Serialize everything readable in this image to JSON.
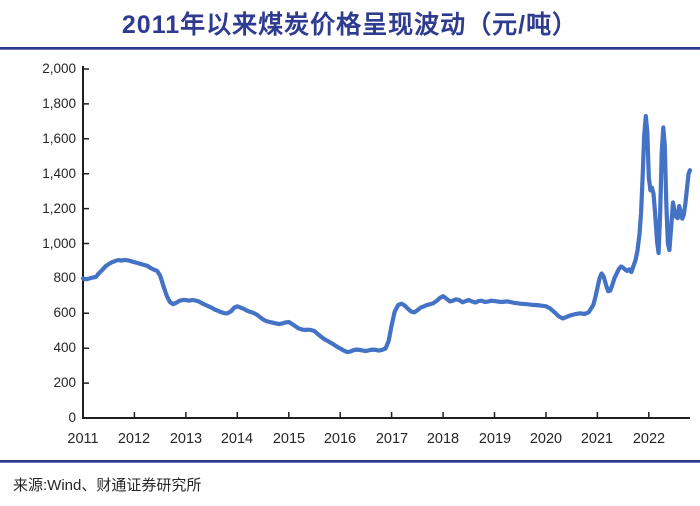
{
  "title": "2011年以来煤炭价格呈现波动（元/吨）",
  "source": "来源:Wind、财通证券研究所",
  "colors": {
    "accent": "#2e3b8e",
    "line": "#4472c4",
    "axis": "#1f1f1f",
    "label": "#262626"
  },
  "chart_data": {
    "type": "line",
    "title": "2011年以来煤炭价格呈现波动（元/吨）",
    "xlabel": "",
    "ylabel": "",
    "unit": "元/吨",
    "grid": false,
    "legend": "none",
    "xlim": [
      2011,
      2022.8
    ],
    "ylim": [
      0,
      2000
    ],
    "x_ticks": [
      2011,
      2012,
      2013,
      2014,
      2015,
      2016,
      2017,
      2018,
      2019,
      2020,
      2021,
      2022
    ],
    "y_ticks": [
      0,
      200,
      400,
      600,
      800,
      1000,
      1200,
      1400,
      1600,
      1800,
      2000
    ],
    "y_tick_labels": [
      "0",
      "200",
      "400",
      "600",
      "800",
      "1,000",
      "1,200",
      "1,400",
      "1,600",
      "1,800",
      "2,000"
    ],
    "series": [
      {
        "points": [
          [
            2011.0,
            800
          ],
          [
            2011.06,
            795
          ],
          [
            2011.13,
            800
          ],
          [
            2011.19,
            805
          ],
          [
            2011.25,
            808
          ],
          [
            2011.31,
            830
          ],
          [
            2011.38,
            850
          ],
          [
            2011.44,
            870
          ],
          [
            2011.5,
            882
          ],
          [
            2011.56,
            892
          ],
          [
            2011.63,
            900
          ],
          [
            2011.69,
            905
          ],
          [
            2011.75,
            902
          ],
          [
            2011.81,
            906
          ],
          [
            2011.88,
            903
          ],
          [
            2011.94,
            898
          ],
          [
            2012.0,
            893
          ],
          [
            2012.06,
            888
          ],
          [
            2012.13,
            882
          ],
          [
            2012.19,
            877
          ],
          [
            2012.25,
            872
          ],
          [
            2012.31,
            860
          ],
          [
            2012.38,
            850
          ],
          [
            2012.44,
            843
          ],
          [
            2012.5,
            815
          ],
          [
            2012.56,
            760
          ],
          [
            2012.63,
            700
          ],
          [
            2012.69,
            665
          ],
          [
            2012.75,
            652
          ],
          [
            2012.81,
            660
          ],
          [
            2012.88,
            672
          ],
          [
            2012.94,
            676
          ],
          [
            2013.0,
            676
          ],
          [
            2013.06,
            672
          ],
          [
            2013.13,
            676
          ],
          [
            2013.19,
            673
          ],
          [
            2013.25,
            668
          ],
          [
            2013.31,
            658
          ],
          [
            2013.38,
            648
          ],
          [
            2013.44,
            640
          ],
          [
            2013.5,
            632
          ],
          [
            2013.56,
            622
          ],
          [
            2013.63,
            614
          ],
          [
            2013.69,
            606
          ],
          [
            2013.75,
            600
          ],
          [
            2013.81,
            600
          ],
          [
            2013.88,
            612
          ],
          [
            2013.94,
            632
          ],
          [
            2014.0,
            640
          ],
          [
            2014.06,
            633
          ],
          [
            2014.13,
            625
          ],
          [
            2014.19,
            615
          ],
          [
            2014.25,
            608
          ],
          [
            2014.31,
            603
          ],
          [
            2014.38,
            592
          ],
          [
            2014.44,
            578
          ],
          [
            2014.5,
            565
          ],
          [
            2014.56,
            556
          ],
          [
            2014.63,
            550
          ],
          [
            2014.69,
            546
          ],
          [
            2014.75,
            542
          ],
          [
            2014.81,
            538
          ],
          [
            2014.88,
            542
          ],
          [
            2014.94,
            548
          ],
          [
            2015.0,
            550
          ],
          [
            2015.06,
            540
          ],
          [
            2015.13,
            525
          ],
          [
            2015.19,
            514
          ],
          [
            2015.25,
            508
          ],
          [
            2015.31,
            505
          ],
          [
            2015.38,
            506
          ],
          [
            2015.44,
            504
          ],
          [
            2015.5,
            498
          ],
          [
            2015.56,
            482
          ],
          [
            2015.63,
            465
          ],
          [
            2015.69,
            452
          ],
          [
            2015.75,
            443
          ],
          [
            2015.81,
            432
          ],
          [
            2015.88,
            420
          ],
          [
            2015.94,
            408
          ],
          [
            2016.0,
            398
          ],
          [
            2016.06,
            388
          ],
          [
            2016.13,
            378
          ],
          [
            2016.19,
            380
          ],
          [
            2016.25,
            388
          ],
          [
            2016.31,
            392
          ],
          [
            2016.38,
            390
          ],
          [
            2016.44,
            386
          ],
          [
            2016.5,
            384
          ],
          [
            2016.56,
            388
          ],
          [
            2016.63,
            392
          ],
          [
            2016.69,
            390
          ],
          [
            2016.75,
            386
          ],
          [
            2016.81,
            390
          ],
          [
            2016.88,
            398
          ],
          [
            2016.94,
            440
          ],
          [
            2017.0,
            530
          ],
          [
            2017.06,
            610
          ],
          [
            2017.13,
            648
          ],
          [
            2017.19,
            655
          ],
          [
            2017.25,
            645
          ],
          [
            2017.31,
            628
          ],
          [
            2017.38,
            610
          ],
          [
            2017.44,
            605
          ],
          [
            2017.5,
            618
          ],
          [
            2017.56,
            632
          ],
          [
            2017.63,
            640
          ],
          [
            2017.69,
            648
          ],
          [
            2017.75,
            652
          ],
          [
            2017.81,
            658
          ],
          [
            2017.88,
            672
          ],
          [
            2017.94,
            688
          ],
          [
            2018.0,
            698
          ],
          [
            2018.06,
            685
          ],
          [
            2018.13,
            668
          ],
          [
            2018.19,
            672
          ],
          [
            2018.25,
            680
          ],
          [
            2018.31,
            676
          ],
          [
            2018.38,
            663
          ],
          [
            2018.44,
            670
          ],
          [
            2018.5,
            676
          ],
          [
            2018.56,
            668
          ],
          [
            2018.63,
            662
          ],
          [
            2018.69,
            670
          ],
          [
            2018.75,
            672
          ],
          [
            2018.81,
            665
          ],
          [
            2018.88,
            668
          ],
          [
            2018.94,
            672
          ],
          [
            2019.0,
            670
          ],
          [
            2019.13,
            665
          ],
          [
            2019.25,
            668
          ],
          [
            2019.38,
            660
          ],
          [
            2019.5,
            655
          ],
          [
            2019.63,
            652
          ],
          [
            2019.75,
            648
          ],
          [
            2019.88,
            645
          ],
          [
            2020.0,
            640
          ],
          [
            2020.08,
            628
          ],
          [
            2020.17,
            605
          ],
          [
            2020.25,
            582
          ],
          [
            2020.33,
            570
          ],
          [
            2020.42,
            582
          ],
          [
            2020.5,
            590
          ],
          [
            2020.58,
            596
          ],
          [
            2020.67,
            600
          ],
          [
            2020.75,
            596
          ],
          [
            2020.83,
            606
          ],
          [
            2020.92,
            648
          ],
          [
            2020.96,
            690
          ],
          [
            2021.0,
            745
          ],
          [
            2021.04,
            800
          ],
          [
            2021.08,
            828
          ],
          [
            2021.12,
            812
          ],
          [
            2021.17,
            760
          ],
          [
            2021.21,
            726
          ],
          [
            2021.25,
            730
          ],
          [
            2021.29,
            762
          ],
          [
            2021.33,
            800
          ],
          [
            2021.38,
            832
          ],
          [
            2021.42,
            855
          ],
          [
            2021.46,
            868
          ],
          [
            2021.5,
            862
          ],
          [
            2021.54,
            850
          ],
          [
            2021.58,
            843
          ],
          [
            2021.62,
            852
          ],
          [
            2021.66,
            836
          ],
          [
            2021.7,
            870
          ],
          [
            2021.74,
            905
          ],
          [
            2021.78,
            960
          ],
          [
            2021.82,
            1060
          ],
          [
            2021.85,
            1180
          ],
          [
            2021.88,
            1390
          ],
          [
            2021.91,
            1620
          ],
          [
            2021.94,
            1730
          ],
          [
            2021.97,
            1640
          ],
          [
            2022.0,
            1380
          ],
          [
            2022.03,
            1305
          ],
          [
            2022.06,
            1320
          ],
          [
            2022.09,
            1285
          ],
          [
            2022.12,
            1180
          ],
          [
            2022.16,
            1010
          ],
          [
            2022.19,
            945
          ],
          [
            2022.22,
            1180
          ],
          [
            2022.25,
            1520
          ],
          [
            2022.28,
            1665
          ],
          [
            2022.31,
            1560
          ],
          [
            2022.34,
            1230
          ],
          [
            2022.37,
            1000
          ],
          [
            2022.4,
            962
          ],
          [
            2022.44,
            1120
          ],
          [
            2022.47,
            1235
          ],
          [
            2022.5,
            1185
          ],
          [
            2022.53,
            1152
          ],
          [
            2022.56,
            1145
          ],
          [
            2022.59,
            1215
          ],
          [
            2022.62,
            1180
          ],
          [
            2022.65,
            1142
          ],
          [
            2022.68,
            1165
          ],
          [
            2022.71,
            1230
          ],
          [
            2022.74,
            1310
          ],
          [
            2022.77,
            1398
          ],
          [
            2022.8,
            1420
          ]
        ]
      }
    ]
  }
}
